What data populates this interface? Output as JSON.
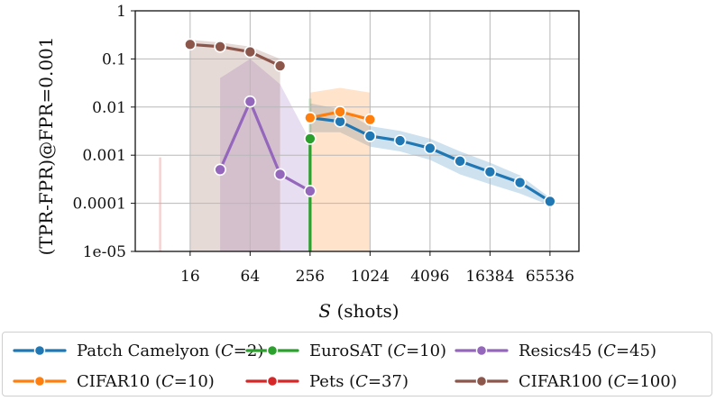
{
  "chart_data": {
    "type": "line",
    "x_scale": "log2",
    "y_scale": "log10",
    "xlabel_symbol": "S",
    "xlabel_suffix": " (shots)",
    "ylabel": "(TPR-FPR)@FPR=0.001",
    "xlim": [
      4.5,
      128000
    ],
    "ylim": [
      1e-05,
      1
    ],
    "x_tick_values": [
      16,
      64,
      256,
      1024,
      4096,
      16384,
      65536
    ],
    "x_tick_labels": [
      "16",
      "64",
      "256",
      "1024",
      "4096",
      "16384",
      "65536"
    ],
    "y_tick_values": [
      1e-05,
      0.0001,
      0.001,
      0.01,
      0.1,
      1
    ],
    "y_tick_labels": [
      "1e-05",
      "0.0001",
      "0.001",
      "0.01",
      "0.1",
      "1"
    ],
    "grid": true,
    "legend_position": "bottom",
    "series": [
      {
        "name": "Patch Camelyon",
        "C": "2",
        "color": "#1f77b4",
        "x": [
          256,
          512,
          1024,
          2048,
          4096,
          8192,
          16384,
          32768,
          65536
        ],
        "y": [
          0.006,
          0.005,
          0.0025,
          0.002,
          0.0014,
          0.00075,
          0.00045,
          0.00027,
          0.00011
        ],
        "band_low": [
          0.003,
          0.003,
          0.0015,
          0.0012,
          0.0008,
          0.0004,
          0.00025,
          0.00016,
          9e-05
        ],
        "band_high": [
          0.012,
          0.009,
          0.004,
          0.0032,
          0.0022,
          0.0012,
          0.0007,
          0.00038,
          0.00013
        ]
      },
      {
        "name": "CIFAR10",
        "C": "10",
        "color": "#ff7f0e",
        "x": [
          256,
          512,
          1024
        ],
        "y": [
          0.006,
          0.008,
          0.0055
        ],
        "band_low": [
          1e-05,
          1e-05,
          1e-05
        ],
        "band_high": [
          0.02,
          0.025,
          0.02
        ]
      },
      {
        "name": "EuroSAT",
        "C": "10",
        "color": "#2ca02c",
        "x": [
          256
        ],
        "y": [
          0.0022
        ],
        "band_low": [
          1e-05
        ],
        "band_high": [
          0.015
        ]
      },
      {
        "name": "Pets",
        "C": "37",
        "color": "#d62728",
        "x": [],
        "y": [],
        "band_x": [
          8,
          8
        ],
        "band_low": [
          1e-05,
          1e-05
        ],
        "band_high": [
          0.0009,
          0.0009
        ]
      },
      {
        "name": "Resics45",
        "C": "45",
        "color": "#9467bd",
        "x": [
          32,
          64,
          128,
          256
        ],
        "y": [
          0.0005,
          0.013,
          0.0004,
          0.00018
        ],
        "band_low": [
          1e-05,
          1e-05,
          1e-05,
          1e-05
        ],
        "band_high": [
          0.04,
          0.1,
          0.03,
          0.002
        ]
      },
      {
        "name": "CIFAR100",
        "C": "100",
        "color": "#8c564b",
        "x": [
          16,
          32,
          64,
          128
        ],
        "y": [
          0.2,
          0.18,
          0.14,
          0.072
        ],
        "band_low": [
          1e-05,
          1e-05,
          1e-05,
          1e-05
        ],
        "band_high": [
          0.25,
          0.22,
          0.18,
          0.1
        ]
      }
    ],
    "legend_order": [
      0,
      2,
      4,
      1,
      3,
      5
    ]
  }
}
